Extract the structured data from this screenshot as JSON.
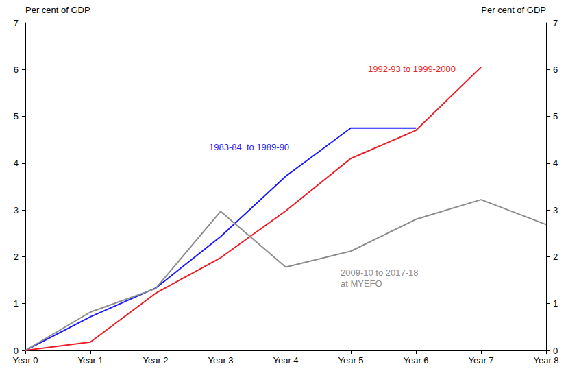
{
  "chart_data": {
    "type": "line",
    "y_label": "Per cent of GDP",
    "y2_label": "Per cent of GDP",
    "categories": [
      "Year 0",
      "Year 1",
      "Year 2",
      "Year 3",
      "Year 4",
      "Year 5",
      "Year 6",
      "Year 7",
      "Year 8"
    ],
    "series": [
      {
        "name": "1983-84  to 1989-90",
        "color": "#1a1aff",
        "values": [
          0,
          0.72,
          1.33,
          2.43,
          3.72,
          4.75,
          4.75,
          null,
          null
        ]
      },
      {
        "name": "1992-93 to 1999-2000",
        "color": "#ee1c25",
        "values": [
          0,
          0.18,
          1.22,
          1.98,
          2.98,
          4.1,
          4.7,
          6.05,
          null
        ]
      },
      {
        "name": "2009-10 to 2017-18\nat MYEFO",
        "color": "#8c8c8c",
        "values": [
          0,
          0.82,
          1.32,
          2.97,
          1.78,
          2.12,
          2.8,
          3.22,
          2.69
        ]
      }
    ],
    "ylim": [
      0,
      7
    ],
    "yticks": [
      0,
      1,
      2,
      3,
      4,
      5,
      6,
      7
    ],
    "y2lim": [
      0,
      7
    ],
    "y2ticks": [
      0,
      1,
      2,
      3,
      4,
      5,
      6,
      7
    ],
    "grid": false
  }
}
